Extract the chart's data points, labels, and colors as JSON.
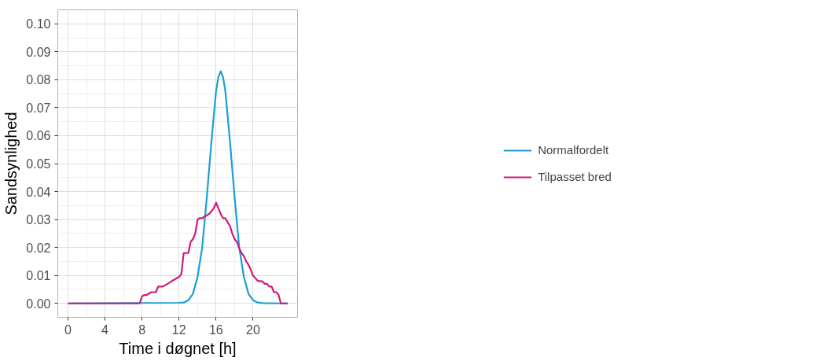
{
  "chart_data": {
    "type": "line",
    "xlabel": "Time i døgnet [h]",
    "ylabel": "Sandsynlighed",
    "xlim": [
      -1.1,
      24.8
    ],
    "ylim": [
      -0.005,
      0.105
    ],
    "xticks": [
      0,
      4,
      8,
      12,
      16,
      20
    ],
    "yticks": [
      {
        "value": 0,
        "label": "0.00"
      },
      {
        "value": 0.01,
        "label": "0.01"
      },
      {
        "value": 0.02,
        "label": "0.02"
      },
      {
        "value": 0.03,
        "label": "0.03"
      },
      {
        "value": 0.04,
        "label": "0.04"
      },
      {
        "value": 0.05,
        "label": "0.05"
      },
      {
        "value": 0.06,
        "label": "0.06"
      },
      {
        "value": 0.07,
        "label": "0.07"
      },
      {
        "value": 0.08,
        "label": "0.08"
      },
      {
        "value": 0.09,
        "label": "0.09"
      },
      {
        "value": 0.1,
        "label": "0.10"
      }
    ],
    "grid": true,
    "legend": "right",
    "marker": "none",
    "line_style": "solid",
    "series": [
      {
        "name": "Normalfordelt",
        "color": "#1b9fd6",
        "x": [
          0,
          12,
          12.5,
          13,
          13.5,
          14,
          14.5,
          15,
          15.5,
          16,
          16.25,
          16.5,
          16.75,
          17,
          17.5,
          18,
          18.5,
          19,
          19.5,
          20,
          20.5,
          21,
          23,
          23.75
        ],
        "values": [
          0,
          0.0002,
          0.0003,
          0.0011,
          0.0034,
          0.0095,
          0.02,
          0.038,
          0.058,
          0.076,
          0.081,
          0.083,
          0.081,
          0.076,
          0.058,
          0.038,
          0.02,
          0.0095,
          0.0034,
          0.0011,
          0.0003,
          0.0001,
          0,
          0
        ]
      },
      {
        "name": "Tilpasset bred",
        "color": "#d0197a",
        "x": [
          0,
          7.75,
          8,
          8.25,
          8.5,
          8.75,
          9,
          9.25,
          9.5,
          9.75,
          10,
          10.25,
          10.5,
          10.75,
          11,
          11.25,
          11.5,
          11.75,
          12,
          12.25,
          12.5,
          12.75,
          13,
          13.25,
          13.5,
          13.75,
          14,
          14.25,
          14.5,
          14.75,
          15,
          15.25,
          15.5,
          15.75,
          16,
          16.25,
          16.5,
          16.75,
          17,
          17.25,
          17.5,
          17.75,
          18,
          18.25,
          18.5,
          18.75,
          19,
          19.25,
          19.5,
          19.75,
          20,
          20.25,
          20.5,
          20.75,
          21,
          21.25,
          21.5,
          21.75,
          22,
          22.25,
          22.5,
          22.75,
          23,
          23.25,
          23.5,
          23.75
        ],
        "values": [
          0,
          0,
          0.0025,
          0.003,
          0.003,
          0.0035,
          0.004,
          0.004,
          0.004,
          0.006,
          0.006,
          0.006,
          0.0065,
          0.007,
          0.0075,
          0.008,
          0.0085,
          0.009,
          0.0095,
          0.0105,
          0.018,
          0.018,
          0.018,
          0.022,
          0.023,
          0.025,
          0.03,
          0.0305,
          0.0305,
          0.031,
          0.0315,
          0.032,
          0.033,
          0.034,
          0.036,
          0.034,
          0.032,
          0.0305,
          0.0305,
          0.029,
          0.0277,
          0.025,
          0.023,
          0.022,
          0.0197,
          0.018,
          0.0169,
          0.015,
          0.0138,
          0.012,
          0.0099,
          0.009,
          0.008,
          0.008,
          0.0079,
          0.007,
          0.007,
          0.006,
          0.006,
          0.004,
          0.004,
          0.003,
          0,
          0,
          0,
          0
        ]
      }
    ]
  }
}
